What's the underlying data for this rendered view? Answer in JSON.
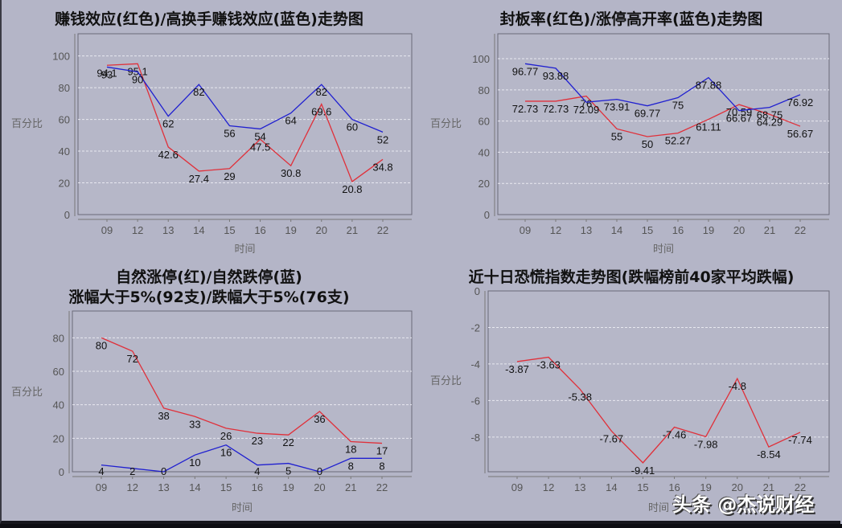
{
  "chart_data": [
    {
      "type": "line",
      "title": "赚钱效应(红色)/高换手赚钱效应(蓝色)走势图",
      "xlabel": "时间",
      "ylabel": "百分比",
      "categories": [
        "09",
        "12",
        "13",
        "14",
        "15",
        "16",
        "19",
        "20",
        "21",
        "22"
      ],
      "ylim": [
        0,
        114
      ],
      "yticks": [
        0,
        20,
        40,
        60,
        80,
        100
      ],
      "grid": true,
      "series": [
        {
          "name": "赚钱效应",
          "color": "#e0303a",
          "values": [
            94.1,
            95.1,
            42.6,
            27.4,
            29,
            47.5,
            30.8,
            69.6,
            20.8,
            34.8
          ]
        },
        {
          "name": "高换手赚钱效应",
          "color": "#2020d0",
          "values": [
            93,
            90,
            62,
            82,
            56,
            54,
            64,
            82,
            60,
            52
          ]
        }
      ]
    },
    {
      "type": "line",
      "title": "封板率(红色)/涨停高开率(蓝色)走势图",
      "xlabel": "时间",
      "ylabel": "百分比",
      "categories": [
        "09",
        "12",
        "13",
        "14",
        "15",
        "16",
        "19",
        "20",
        "21",
        "22"
      ],
      "ylim": [
        0,
        116
      ],
      "yticks": [
        0,
        20,
        40,
        60,
        80,
        100
      ],
      "grid": true,
      "series": [
        {
          "name": "封板率",
          "color": "#e0303a",
          "values": [
            72.73,
            72.73,
            76,
            55,
            50,
            52.27,
            61.11,
            70.59,
            64.29,
            56.67
          ]
        },
        {
          "name": "涨停高开率",
          "color": "#2020d0",
          "values": [
            96.77,
            93.88,
            72.09,
            73.91,
            69.77,
            75,
            87.88,
            66.67,
            68.75,
            76.92
          ]
        }
      ]
    },
    {
      "type": "line",
      "title": "自然涨停(红)/自然跌停(蓝)",
      "subtitle": "涨幅大于5%(92支)/跌幅大于5%(76支)",
      "xlabel": "时间",
      "ylabel": "百分比",
      "categories": [
        "09",
        "12",
        "13",
        "14",
        "15",
        "16",
        "19",
        "20",
        "21",
        "22"
      ],
      "ylim": [
        0,
        96
      ],
      "yticks": [
        0,
        20,
        40,
        60,
        80
      ],
      "grid": true,
      "series": [
        {
          "name": "自然涨停",
          "color": "#e0303a",
          "values": [
            80,
            72,
            38,
            33,
            26,
            23,
            22,
            36,
            18,
            17
          ]
        },
        {
          "name": "自然跌停",
          "color": "#2020d0",
          "values": [
            4,
            2,
            0,
            10,
            16,
            4,
            5,
            0,
            8,
            8
          ]
        }
      ]
    },
    {
      "type": "line",
      "title": "近十日恐慌指数走势图(跌幅榜前40家平均跌幅)",
      "xlabel": "时间",
      "ylabel": "百分比",
      "categories": [
        "09",
        "12",
        "13",
        "14",
        "15",
        "16",
        "19",
        "20",
        "21",
        "22"
      ],
      "ylim": [
        -9.9,
        0
      ],
      "yticks": [
        0,
        -2,
        -4,
        -6,
        -8
      ],
      "grid": true,
      "series": [
        {
          "name": "恐慌指数",
          "color": "#e0303a",
          "values": [
            -3.87,
            -3.63,
            -5.38,
            -7.67,
            -9.41,
            -7.46,
            -7.98,
            -4.8,
            -8.54,
            -7.74
          ]
        }
      ]
    }
  ],
  "charts": {
    "c1": {
      "title": "赚钱效应(红色)/高换手赚钱效应(蓝色)走势图"
    },
    "c2": {
      "title": "封板率(红色)/涨停高开率(蓝色)走势图"
    },
    "c3": {
      "title": "自然涨停(红)/自然跌停(蓝)",
      "subtitle": "涨幅大于5%(92支)/跌幅大于5%(76支)"
    },
    "c4": {
      "title": "近十日恐慌指数走势图(跌幅榜前40家平均跌幅)"
    }
  },
  "watermark": "头条 @杰说财经"
}
